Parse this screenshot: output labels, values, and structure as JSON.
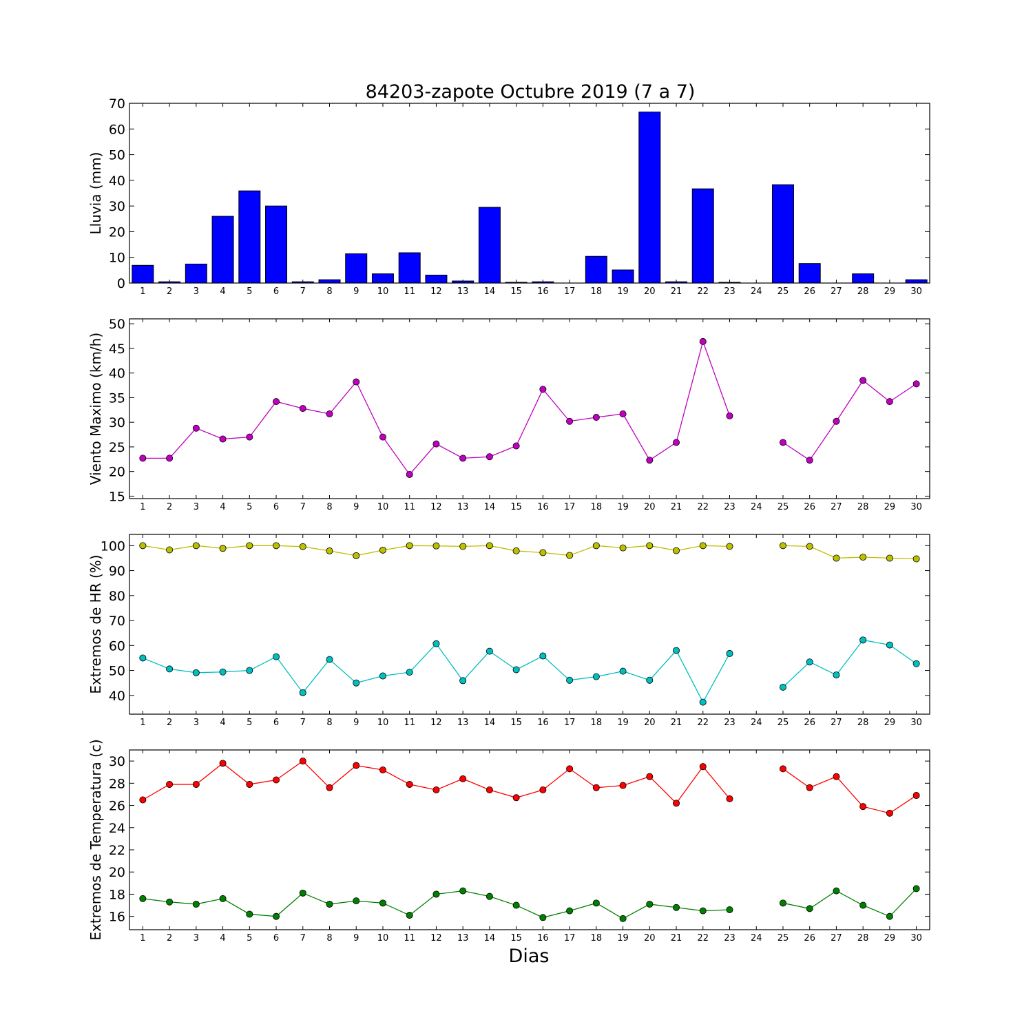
{
  "figure": {
    "title": "84203-zapote Octubre 2019  (7 a 7)",
    "xlabel": "Dias"
  },
  "chart_data": [
    {
      "type": "bar",
      "ylabel": "Lluvia (mm)",
      "ylim": [
        0,
        70
      ],
      "yticks": [
        0,
        10,
        20,
        30,
        40,
        50,
        60,
        70
      ],
      "categories": [
        1,
        2,
        3,
        4,
        5,
        6,
        7,
        8,
        9,
        10,
        11,
        12,
        13,
        14,
        15,
        16,
        17,
        18,
        19,
        20,
        21,
        22,
        23,
        24,
        25,
        26,
        27,
        28,
        29,
        30
      ],
      "values": [
        6.9,
        0.5,
        7.4,
        26.0,
        35.9,
        30.0,
        0.5,
        1.3,
        11.4,
        3.6,
        11.8,
        3.1,
        0.8,
        29.5,
        0.3,
        0.5,
        0,
        10.4,
        5.1,
        66.6,
        0.5,
        36.7,
        0.3,
        0,
        38.3,
        7.6,
        0,
        3.6,
        0,
        1.3
      ],
      "color": "#0000ff"
    },
    {
      "type": "line",
      "ylabel": "Viento Maximo (km/h)",
      "ylim": [
        14.5,
        51
      ],
      "yticks": [
        15,
        20,
        25,
        30,
        35,
        40,
        45,
        50
      ],
      "categories": [
        1,
        2,
        3,
        4,
        5,
        6,
        7,
        8,
        9,
        10,
        11,
        12,
        13,
        14,
        15,
        16,
        17,
        18,
        19,
        20,
        21,
        22,
        23,
        24,
        25,
        26,
        27,
        28,
        29,
        30
      ],
      "series": [
        {
          "values": [
            22.7,
            22.7,
            28.8,
            26.6,
            27.0,
            34.2,
            32.8,
            31.7,
            38.2,
            27.0,
            19.4,
            25.6,
            22.7,
            23.0,
            25.2,
            36.7,
            30.2,
            31.0,
            31.7,
            22.3,
            25.9,
            46.4,
            31.3,
            null,
            25.9,
            22.3,
            30.2,
            38.5,
            34.2,
            37.8
          ],
          "color": "#bf00bf"
        }
      ]
    },
    {
      "type": "line",
      "ylabel": "Extremos de HR (%)",
      "ylim": [
        32.5,
        104.5
      ],
      "yticks": [
        40,
        50,
        60,
        70,
        80,
        90,
        100
      ],
      "categories": [
        1,
        2,
        3,
        4,
        5,
        6,
        7,
        8,
        9,
        10,
        11,
        12,
        13,
        14,
        15,
        16,
        17,
        18,
        19,
        20,
        21,
        22,
        23,
        24,
        25,
        26,
        27,
        28,
        29,
        30
      ],
      "series": [
        {
          "values": [
            100,
            98.3,
            100,
            98.9,
            100,
            100,
            99.6,
            97.9,
            96.0,
            98.2,
            100,
            99.9,
            99.7,
            100,
            97.9,
            97.2,
            96.1,
            100,
            99.1,
            100,
            98.0,
            100,
            99.7,
            null,
            100,
            99.7,
            95.0,
            95.4,
            95.0,
            94.7
          ],
          "color": "#bfbf00"
        },
        {
          "values": [
            55.0,
            50.6,
            49.1,
            49.4,
            50.0,
            55.5,
            41.1,
            54.4,
            45.0,
            47.8,
            49.3,
            60.7,
            45.9,
            57.7,
            50.3,
            55.8,
            46.1,
            47.5,
            49.7,
            46.1,
            58.0,
            37.3,
            56.8,
            null,
            43.3,
            53.4,
            48.2,
            62.2,
            60.2,
            52.7
          ],
          "color": "#00bfbf"
        }
      ]
    },
    {
      "type": "line",
      "ylabel": "Extremos de Temperatura (c)",
      "ylim": [
        14.8,
        31.0
      ],
      "yticks": [
        16,
        18,
        20,
        22,
        24,
        26,
        28,
        30
      ],
      "categories": [
        1,
        2,
        3,
        4,
        5,
        6,
        7,
        8,
        9,
        10,
        11,
        12,
        13,
        14,
        15,
        16,
        17,
        18,
        19,
        20,
        21,
        22,
        23,
        24,
        25,
        26,
        27,
        28,
        29,
        30
      ],
      "series": [
        {
          "values": [
            26.5,
            27.9,
            27.9,
            29.8,
            27.9,
            28.3,
            30.0,
            27.6,
            29.6,
            29.2,
            27.9,
            27.4,
            28.4,
            27.4,
            26.7,
            27.4,
            29.3,
            27.6,
            27.8,
            28.6,
            26.2,
            29.5,
            26.6,
            null,
            29.3,
            27.6,
            28.6,
            25.9,
            25.3,
            26.9
          ],
          "color": "#ff0000"
        },
        {
          "values": [
            17.6,
            17.3,
            17.1,
            17.6,
            16.2,
            16.0,
            18.1,
            17.1,
            17.4,
            17.2,
            16.1,
            18.0,
            18.3,
            17.8,
            17.0,
            15.9,
            16.5,
            17.2,
            15.8,
            17.1,
            16.8,
            16.5,
            16.6,
            null,
            17.2,
            16.7,
            18.3,
            17.0,
            16.0,
            18.5
          ],
          "color": "#008000"
        }
      ]
    }
  ]
}
